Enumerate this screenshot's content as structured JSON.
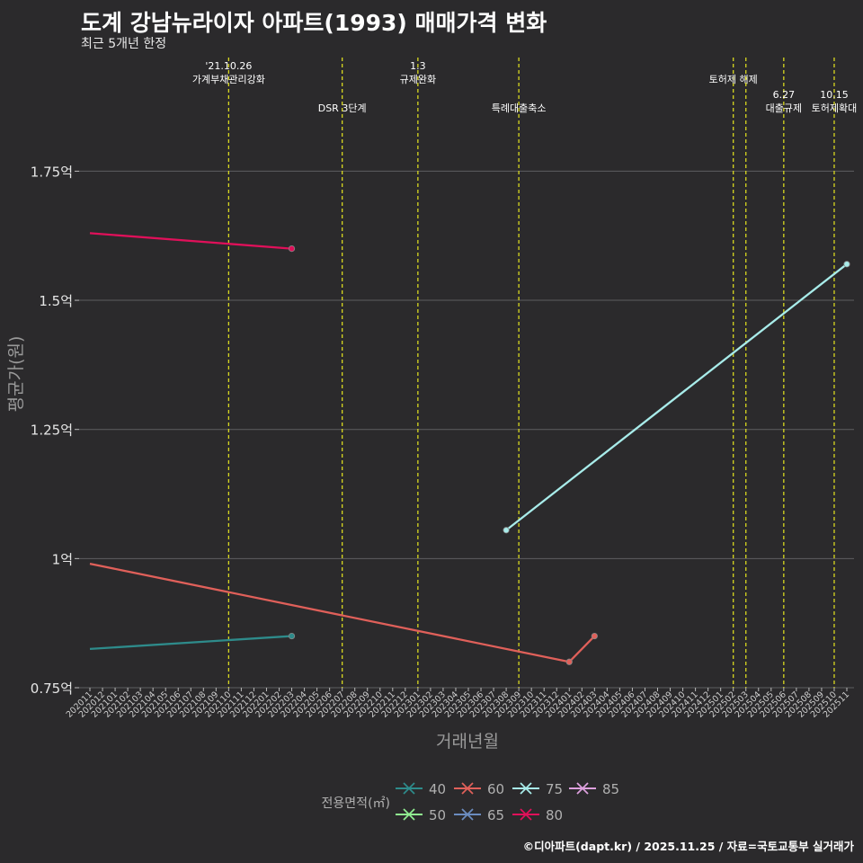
{
  "title": "도계 강남뉴라이자 아파트(1993) 매매가격 변화",
  "subtitle": "최근 5개년 한정",
  "caption": "©디아파트(dapt.kr) / 2025.11.25 / 자료=국토교통부 실거래가",
  "chart_data": {
    "type": "line",
    "xlabel": "거래년월",
    "ylabel": "평균가(원)",
    "ylim": [
      0.75,
      1.97
    ],
    "yticks": [
      {
        "value": 0.75,
        "label": "0.75억"
      },
      {
        "value": 1.0,
        "label": "1억"
      },
      {
        "value": 1.25,
        "label": "1.25억"
      },
      {
        "value": 1.5,
        "label": "1.5억"
      },
      {
        "value": 1.75,
        "label": "1.75억"
      }
    ],
    "months": [
      "202011",
      "202012",
      "202101",
      "202102",
      "202103",
      "202104",
      "202105",
      "202106",
      "202107",
      "202108",
      "202109",
      "202110",
      "202111",
      "202112",
      "202201",
      "202202",
      "202203",
      "202204",
      "202205",
      "202206",
      "202207",
      "202208",
      "202209",
      "202210",
      "202211",
      "202212",
      "202301",
      "202302",
      "202303",
      "202304",
      "202305",
      "202306",
      "202307",
      "202308",
      "202309",
      "202310",
      "202311",
      "202312",
      "202401",
      "202402",
      "202403",
      "202404",
      "202405",
      "202406",
      "202407",
      "202408",
      "202409",
      "202410",
      "202411",
      "202412",
      "202501",
      "202502",
      "202503",
      "202504",
      "202505",
      "202506",
      "202507",
      "202508",
      "202509",
      "202510",
      "202511"
    ],
    "legend_title": "전용면적(㎡)",
    "legend": [
      {
        "name": "40",
        "color": "#2e8b8b"
      },
      {
        "name": "60",
        "color": "#e0605a"
      },
      {
        "name": "75",
        "color": "#a8ecea"
      },
      {
        "name": "85",
        "color": "#dda0dd"
      },
      {
        "name": "50",
        "color": "#90ee90"
      },
      {
        "name": "65",
        "color": "#6b8cc0"
      },
      {
        "name": "80",
        "color": "#e0105a"
      }
    ],
    "series": [
      {
        "name": "40",
        "color": "#2e8b8b",
        "points": [
          {
            "x": "202011",
            "y": 0.825,
            "marker": false
          },
          {
            "x": "202203",
            "y": 0.85,
            "marker": true
          }
        ]
      },
      {
        "name": "60",
        "color": "#e0605a",
        "points": [
          {
            "x": "202011",
            "y": 0.99,
            "marker": false
          },
          {
            "x": "202401",
            "y": 0.8,
            "marker": true
          },
          {
            "x": "202403",
            "y": 0.85,
            "marker": true
          }
        ]
      },
      {
        "name": "75",
        "color": "#a8ecea",
        "points": [
          {
            "x": "202308",
            "y": 1.055,
            "marker": true
          },
          {
            "x": "202511",
            "y": 1.57,
            "marker": true
          }
        ]
      },
      {
        "name": "80",
        "color": "#e0105a",
        "points": [
          {
            "x": "202011",
            "y": 1.63,
            "marker": false
          },
          {
            "x": "202203",
            "y": 1.6,
            "marker": true
          }
        ]
      }
    ],
    "events": [
      {
        "month": "202110",
        "lines": [
          "'21.10.26",
          "가계부채관리강화"
        ],
        "row": 0
      },
      {
        "month": "202207",
        "lines": [
          "DSR 3단계"
        ],
        "row": 1
      },
      {
        "month": "202301",
        "lines": [
          "1.3",
          "규제완화"
        ],
        "row": 0
      },
      {
        "month": "202309",
        "lines": [
          "특례대출축소"
        ],
        "row": 1
      },
      {
        "month": "202502",
        "lines": [
          "토허제 해제"
        ],
        "row": 0
      },
      {
        "month": "202503",
        "lines": [],
        "row": 0
      },
      {
        "month": "202506",
        "lines": [
          "6.27",
          "대출규제"
        ],
        "row": 1
      },
      {
        "month": "202510",
        "lines": [
          "10.15",
          "토허제확대"
        ],
        "row": 1
      }
    ]
  }
}
